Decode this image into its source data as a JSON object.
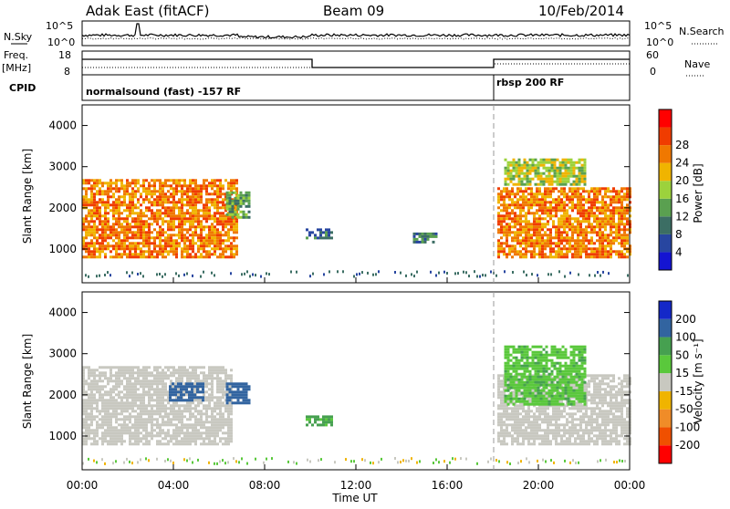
{
  "header": {
    "station": "Adak East (fitACF)",
    "beam": "Beam 09",
    "date": "10/Feb/2014"
  },
  "noise_panel": {
    "left_label": "N.Sky",
    "right_label": "N.Search",
    "left_ticks": [
      "10^5",
      "10^0"
    ],
    "right_ticks": [
      "10^5",
      "10^0"
    ]
  },
  "freq_panel": {
    "left_label_1": "Freq.",
    "left_label_2": "[MHz]",
    "right_label": "Nave",
    "left_ticks": [
      "18",
      "8"
    ],
    "right_ticks": [
      "60",
      "0"
    ]
  },
  "cpid_panel": {
    "label": "CPID",
    "segments": [
      {
        "name": "normalsound (fast) -157 RF",
        "start_hour": 0,
        "end_hour": 18
      },
      {
        "name": "rbsp 200 RF",
        "start_hour": 18,
        "end_hour": 24
      }
    ]
  },
  "colors": {
    "power_scale": [
      "#1414d2",
      "#2846a0",
      "#3c6e64",
      "#5aa050",
      "#9cd23c",
      "#f0b400",
      "#f07800",
      "#f03c00",
      "#ff0000"
    ],
    "velocity_scale": [
      "#ff0000",
      "#f05000",
      "#f08c28",
      "#f0b400",
      "#c8c8c0",
      "#5ac83c",
      "#46a050",
      "#3264a0",
      "#1428c8"
    ],
    "ground_scatter": "#c8c8c0"
  },
  "chart_data": [
    {
      "type": "heatmap",
      "name": "power",
      "ylabel": "Slant Range [km]",
      "xlim_hours": [
        0,
        24
      ],
      "ylim_km": [
        180,
        4500
      ],
      "yticks": [
        1000,
        2000,
        3000,
        4000
      ],
      "colorbar_label": "Power [dB]",
      "colorbar_ticks": [
        4,
        8,
        12,
        16,
        20,
        24,
        28
      ],
      "regions": [
        {
          "x": [
            0.0,
            6.8
          ],
          "y": [
            800,
            2700
          ],
          "level": 24
        },
        {
          "x": [
            6.3,
            7.3
          ],
          "y": [
            1800,
            2400
          ],
          "level": 12
        },
        {
          "x": [
            9.8,
            11.0
          ],
          "y": [
            1250,
            1500
          ],
          "level": 8
        },
        {
          "x": [
            14.5,
            15.5
          ],
          "y": [
            1200,
            1400
          ],
          "level": 8
        },
        {
          "x": [
            18.2,
            24.0
          ],
          "y": [
            800,
            2500
          ],
          "level": 24
        },
        {
          "x": [
            18.5,
            22.0
          ],
          "y": [
            2600,
            3200
          ],
          "level": 16
        }
      ]
    },
    {
      "type": "heatmap",
      "name": "velocity",
      "ylabel": "Slant Range [km]",
      "xlabel": "Time UT",
      "xlim_hours": [
        0,
        24
      ],
      "ylim_km": [
        180,
        4500
      ],
      "yticks": [
        1000,
        2000,
        3000,
        4000
      ],
      "xticks": [
        "00:00",
        "04:00",
        "08:00",
        "12:00",
        "16:00",
        "20:00",
        "00:00"
      ],
      "colorbar_label": "Velocity [m s⁻¹]",
      "colorbar_ticks": [
        200,
        100,
        50,
        15,
        -15,
        -50,
        -100,
        -200
      ],
      "regions": [
        {
          "x": [
            0.0,
            6.5
          ],
          "y": [
            800,
            2700
          ],
          "level": 0
        },
        {
          "x": [
            3.8,
            5.3
          ],
          "y": [
            1900,
            2300
          ],
          "level": 150
        },
        {
          "x": [
            6.3,
            7.3
          ],
          "y": [
            1800,
            2300
          ],
          "level": 150
        },
        {
          "x": [
            9.8,
            11.0
          ],
          "y": [
            1250,
            1500
          ],
          "level": 60
        },
        {
          "x": [
            18.2,
            24.0
          ],
          "y": [
            800,
            2500
          ],
          "level": 0
        },
        {
          "x": [
            18.5,
            22.0
          ],
          "y": [
            1800,
            3200
          ],
          "level": 40
        }
      ]
    }
  ]
}
